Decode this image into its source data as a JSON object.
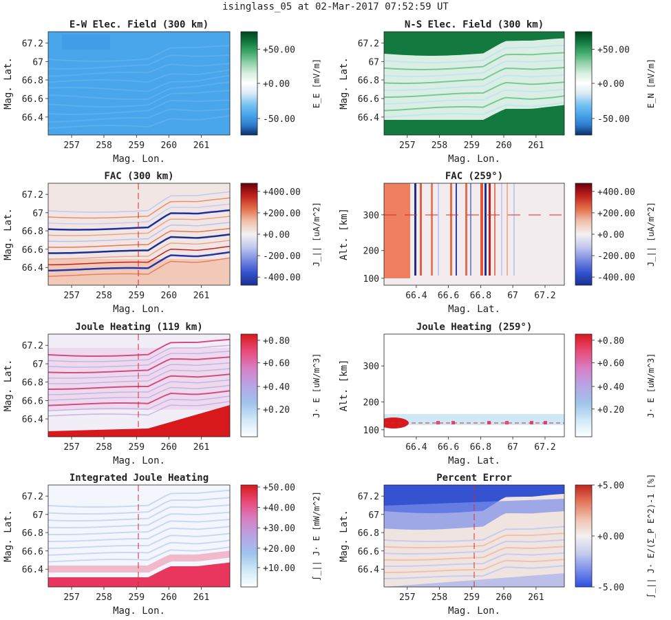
{
  "suptitle": "isinglass_05 at 02-Mar-2017 07:52:59 UT",
  "colors": {
    "ew": [
      "#08306b",
      "#2f7fd0",
      "#4aa6ea",
      "#7cc4f2",
      "#d8e9f6",
      "#ffffff",
      "#d6efe0",
      "#8fd1a8",
      "#3fa86a",
      "#11793f",
      "#00441b"
    ],
    "div": [
      "#1a2f8f",
      "#3553d1",
      "#7a8be0",
      "#c3c9ef",
      "#f4f1f1",
      "#f0c1ad",
      "#e46f4a",
      "#c1221c",
      "#67000d"
    ],
    "joule": [
      "#ffffff",
      "#cfe8f7",
      "#9fc2ec",
      "#b8a4e4",
      "#d77fc4",
      "#e84b7a",
      "#d7191c"
    ],
    "err": [
      "#2f4fe0",
      "#7b8fe9",
      "#c7ccef",
      "#f3f0f0",
      "#efc2b0",
      "#e4785b",
      "#c0241c"
    ]
  },
  "charts": [
    {
      "id": "ew",
      "type": "heatmap",
      "title": "E-W Elec. Field (300 km)",
      "xlabel": "Mag. Lon.",
      "ylabel": "Mag. Lat.",
      "xticks": [
        "257",
        "258",
        "259",
        "260",
        "261"
      ],
      "yticks": [
        "67.2",
        "67",
        "66.8",
        "66.6",
        "66.4"
      ],
      "cbar_label": "E_E [mV/m]",
      "cbar_ticks": [
        "+50.00",
        "+0.00",
        "-50.00"
      ]
    },
    {
      "id": "ns",
      "type": "heatmap",
      "title": "N-S Elec. Field (300 km)",
      "xlabel": "Mag. Lon.",
      "ylabel": "Mag. Lat.",
      "xticks": [
        "257",
        "258",
        "259",
        "260",
        "261"
      ],
      "yticks": [
        "67.2",
        "67",
        "66.8",
        "66.6",
        "66.4"
      ],
      "cbar_label": "E_N [mV/m]",
      "cbar_ticks": [
        "+50.00",
        "+0.00",
        "-50.00"
      ]
    },
    {
      "id": "fac300",
      "type": "heatmap",
      "title": "FAC (300 km)",
      "xlabel": "Mag. Lon.",
      "ylabel": "Mag. Lat.",
      "xticks": [
        "257",
        "258",
        "259",
        "260",
        "261"
      ],
      "yticks": [
        "67.2",
        "67",
        "66.8",
        "66.6",
        "66.4"
      ],
      "cbar_label": "J_|| [uA/m^2]",
      "cbar_ticks": [
        "+400.00",
        "+200.00",
        "+0.00",
        "-200.00",
        "-400.00"
      ]
    },
    {
      "id": "fac259",
      "type": "heatmap",
      "title": "FAC (259°)",
      "xlabel": "Mag. Lat.",
      "ylabel": "Alt. [km]",
      "xticks": [
        "66.4",
        "66.6",
        "66.8",
        "67",
        "67.2"
      ],
      "yticks": [
        "300",
        "200",
        "100"
      ],
      "cbar_label": "J_|| [uA/m^2]",
      "cbar_ticks": [
        "+400.00",
        "+200.00",
        "+0.00",
        "-200.00",
        "-400.00"
      ]
    },
    {
      "id": "jh119",
      "type": "heatmap",
      "title": "Joule Heating (119 km)",
      "xlabel": "Mag. Lon.",
      "ylabel": "Mag. Lat.",
      "xticks": [
        "257",
        "258",
        "259",
        "260",
        "261"
      ],
      "yticks": [
        "67.2",
        "67",
        "66.8",
        "66.6",
        "66.4"
      ],
      "cbar_label": "J· E [uW/m^3]",
      "cbar_ticks": [
        "+0.80",
        "+0.60",
        "+0.40",
        "+0.20"
      ]
    },
    {
      "id": "jh259",
      "type": "heatmap",
      "title": "Joule Heating (259°)",
      "xlabel": "Mag. Lat.",
      "ylabel": "Alt. [km]",
      "xticks": [
        "66.4",
        "66.6",
        "66.8",
        "67",
        "67.2"
      ],
      "yticks": [
        "300",
        "200",
        "100"
      ],
      "cbar_label": "J· E [uW/m^3]",
      "cbar_ticks": [
        "+0.80",
        "+0.60",
        "+0.40",
        "+0.20"
      ]
    },
    {
      "id": "ijh",
      "type": "heatmap",
      "title": "Integrated Joule Heating",
      "xlabel": "Mag. Lon.",
      "ylabel": "Mag. Lat.",
      "xticks": [
        "257",
        "258",
        "259",
        "260",
        "261"
      ],
      "yticks": [
        "67.2",
        "67",
        "66.8",
        "66.6",
        "66.4"
      ],
      "cbar_label": "∫_|| J· E [mW/m^2]",
      "cbar_ticks": [
        "+50.00",
        "+40.00",
        "+30.00",
        "+20.00",
        "+10.00"
      ]
    },
    {
      "id": "perr",
      "type": "heatmap",
      "title": "Percent Error",
      "xlabel": "Mag. Lon.",
      "ylabel": "Mag. Lat.",
      "xticks": [
        "257",
        "258",
        "259",
        "260",
        "261"
      ],
      "yticks": [
        "67.2",
        "67",
        "66.8",
        "66.6",
        "66.4"
      ],
      "cbar_label": "∫_|| J· E/(Σ_P E^2)-1 [%]",
      "cbar_ticks": [
        "+5.00",
        "+0.00",
        "-5.00"
      ]
    }
  ],
  "chart_data": [
    {
      "type": "heatmap",
      "title": "E-W Elec. Field (300 km)",
      "xlabel": "Mag. Lon.",
      "ylabel": "Mag. Lat.",
      "xlim": [
        256.2,
        261.8
      ],
      "ylim": [
        66.25,
        67.35
      ],
      "colorbar": "E_E [mV/m]",
      "clim": [
        -70,
        70
      ],
      "typical_value": -35
    },
    {
      "type": "heatmap",
      "title": "N-S Elec. Field (300 km)",
      "xlabel": "Mag. Lon.",
      "ylabel": "Mag. Lat.",
      "xlim": [
        256.2,
        261.8
      ],
      "ylim": [
        66.25,
        67.35
      ],
      "colorbar": "E_N [mV/m]",
      "clim": [
        -70,
        70
      ],
      "note_values": {
        "north_edge": 55,
        "middle": 15,
        "south_edge": 60
      }
    },
    {
      "type": "heatmap",
      "title": "FAC (300 km)",
      "xlabel": "Mag. Lon.",
      "ylabel": "Mag. Lat.",
      "xlim": [
        256.2,
        261.8
      ],
      "ylim": [
        66.25,
        67.35
      ],
      "colorbar": "J_|| [uA/m^2]",
      "clim": [
        -480,
        480
      ],
      "marker_lon": 259
    },
    {
      "type": "heatmap",
      "title": "FAC (259°)",
      "xlabel": "Mag. Lat.",
      "ylabel": "Alt. [km]",
      "xlim": [
        66.2,
        67.3
      ],
      "ylim": [
        80,
        400
      ],
      "colorbar": "J_|| [uA/m^2]",
      "clim": [
        -480,
        480
      ],
      "marker_alt": 300
    },
    {
      "type": "heatmap",
      "title": "Joule Heating (119 km)",
      "xlabel": "Mag. Lon.",
      "ylabel": "Mag. Lat.",
      "xlim": [
        256.2,
        261.8
      ],
      "ylim": [
        66.25,
        67.35
      ],
      "colorbar": "J· E [uW/m^3]",
      "clim": [
        0,
        0.9
      ],
      "marker_lon": 259
    },
    {
      "type": "heatmap",
      "title": "Joule Heating (259°)",
      "xlabel": "Mag. Lat.",
      "ylabel": "Alt. [km]",
      "xlim": [
        66.2,
        67.3
      ],
      "ylim": [
        80,
        400
      ],
      "colorbar": "J· E [uW/m^3]",
      "clim": [
        0,
        0.9
      ],
      "marker_alt": 119
    },
    {
      "type": "heatmap",
      "title": "Integrated Joule Heating",
      "xlabel": "Mag. Lon.",
      "ylabel": "Mag. Lat.",
      "xlim": [
        256.2,
        261.8
      ],
      "ylim": [
        66.25,
        67.35
      ],
      "colorbar": "∫_|| J· E [mW/m^2]",
      "clim": [
        0,
        55
      ],
      "marker_lon": 259
    },
    {
      "type": "heatmap",
      "title": "Percent Error",
      "xlabel": "Mag. Lon.",
      "ylabel": "Mag. Lat.",
      "xlim": [
        256.2,
        261.8
      ],
      "ylim": [
        66.25,
        67.35
      ],
      "colorbar": "∫_|| J· E/(Σ_P E^2)-1 [%]",
      "clim": [
        -5,
        5
      ],
      "marker_lon": 259
    }
  ]
}
